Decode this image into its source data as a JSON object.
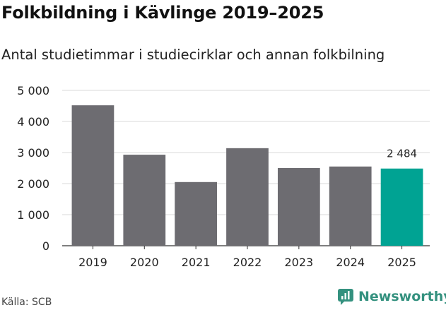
{
  "title": "Folkbildning i Kävlinge 2019–2025",
  "subtitle": "Antal studietimmar i studiecirklar och annan folkbilning",
  "source": "Källa: SCB",
  "brand": {
    "name": "Newsworthy",
    "icon": "newsworthy-logo-icon"
  },
  "colors": {
    "bar": "#6d6c71",
    "highlight": "#00a393",
    "grid": "#d9d9d9",
    "brand": "#34917f"
  },
  "chart_data": {
    "type": "bar",
    "categories": [
      "2019",
      "2020",
      "2021",
      "2022",
      "2023",
      "2024",
      "2025"
    ],
    "values": [
      4520,
      2930,
      2050,
      3140,
      2500,
      2550,
      2484
    ],
    "highlight_index": 6,
    "data_labels": [
      {
        "index": 6,
        "text": "2 484"
      }
    ],
    "y_ticks": [
      0,
      1000,
      2000,
      3000,
      4000,
      5000
    ],
    "y_tick_labels": [
      "0",
      "1 000",
      "2 000",
      "3 000",
      "4 000",
      "5 000"
    ],
    "ylim": [
      0,
      5000
    ],
    "grid": true,
    "legend": "none"
  }
}
